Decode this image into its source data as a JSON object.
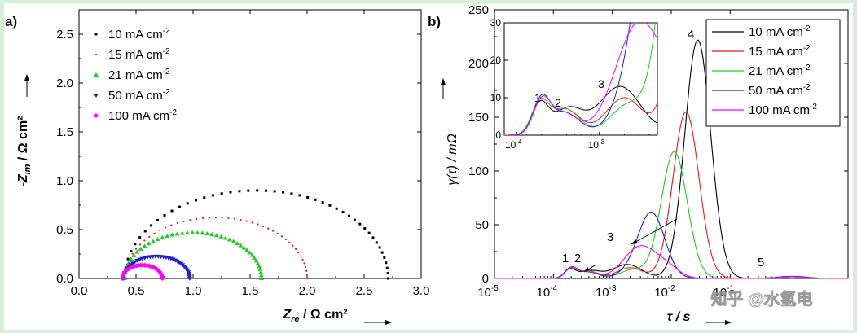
{
  "chart_data": [
    {
      "type": "scatter",
      "panel_label": "a)",
      "xlabel_main": "Z",
      "xlabel_sub": "re",
      "xlabel_unit": " / Ω cm²",
      "ylabel_main": "-Z",
      "ylabel_sub": "im",
      "ylabel_unit": " / Ω cm²",
      "xlim": [
        0.0,
        3.0
      ],
      "ylim": [
        0.0,
        2.75
      ],
      "xticks": [
        "0.0",
        "0.5",
        "1.0",
        "1.5",
        "2.0",
        "2.5",
        "3.0"
      ],
      "yticks": [
        "0.0",
        "0.5",
        "1.0",
        "1.5",
        "2.0",
        "2.5"
      ],
      "series": [
        {
          "name": "10 mA cm",
          "sup": "-2",
          "color": "#000000",
          "marker": "square",
          "r0": 0.4,
          "r1": 2.71,
          "points": 46
        },
        {
          "name": "15 mA cm",
          "sup": "-2",
          "color": "#e41a1c",
          "marker": "dot",
          "r0": 0.4,
          "r1": 2.0,
          "points": 44
        },
        {
          "name": "21 mA cm",
          "sup": "-2",
          "color": "#22cc22",
          "marker": "triangle",
          "r0": 0.4,
          "r1": 1.6,
          "points": 42
        },
        {
          "name": "50 mA cm",
          "sup": "-2",
          "color": "#1f1fd6",
          "marker": "triangle-down",
          "r0": 0.39,
          "r1": 0.97,
          "points": 38
        },
        {
          "name": "100 mA cm",
          "sup": "-2",
          "color": "#ff00ff",
          "marker": "diamond",
          "r0": 0.38,
          "r1": 0.73,
          "points": 30
        }
      ]
    },
    {
      "type": "line",
      "panel_label": "b)",
      "xscale": "log",
      "xlabel": "τ / s",
      "ylabel": "γ(τ) / mΩ",
      "xlim_exp": [
        -5,
        1
      ],
      "ylim": [
        0,
        250
      ],
      "xtick_exps": [
        "-5",
        "-4",
        "-3",
        "-2",
        "-1"
      ],
      "xtick_base": "10",
      "yticks": [
        "0",
        "50",
        "100",
        "150",
        "200",
        "250"
      ],
      "peak_labels": [
        "1",
        "2",
        "3",
        "4",
        "5"
      ],
      "inset": {
        "ylim": [
          0,
          30
        ],
        "yticks": [
          "0",
          "10",
          "20",
          "30"
        ],
        "xtick_exps": [
          "-4",
          "-3"
        ],
        "peak_labels": [
          "1",
          "2",
          "3"
        ]
      },
      "series": [
        {
          "name": "10 mA cm",
          "sup": "-2",
          "color": "#000000",
          "peaks": [
            {
              "mu": -3.72,
              "s": 0.1,
              "h": 8
            },
            {
              "mu": -3.38,
              "s": 0.18,
              "h": 7
            },
            {
              "mu": -2.75,
              "s": 0.25,
              "h": 13
            },
            {
              "mu": -1.55,
              "s": 0.22,
              "h": 222
            },
            {
              "mu": 0.05,
              "s": 0.25,
              "h": 1.5
            }
          ]
        },
        {
          "name": "15 mA cm",
          "sup": "-2",
          "color": "#e41a1c",
          "peaks": [
            {
              "mu": -3.72,
              "s": 0.1,
              "h": 8
            },
            {
              "mu": -3.42,
              "s": 0.18,
              "h": 7
            },
            {
              "mu": -2.7,
              "s": 0.22,
              "h": 10
            },
            {
              "mu": -1.75,
              "s": 0.22,
              "h": 155
            },
            {
              "mu": 0.05,
              "s": 0.25,
              "h": 1.5
            }
          ]
        },
        {
          "name": "21 mA cm",
          "sup": "-2",
          "color": "#22cc22",
          "peaks": [
            {
              "mu": -3.72,
              "s": 0.1,
              "h": 8
            },
            {
              "mu": -3.42,
              "s": 0.18,
              "h": 7
            },
            {
              "mu": -2.65,
              "s": 0.22,
              "h": 8
            },
            {
              "mu": -1.95,
              "s": 0.22,
              "h": 118
            },
            {
              "mu": 0.05,
              "s": 0.25,
              "h": 1.5
            }
          ]
        },
        {
          "name": "50 mA cm",
          "sup": "-2",
          "color": "#1f1fd6",
          "peaks": [
            {
              "mu": -3.7,
              "s": 0.1,
              "h": 9
            },
            {
              "mu": -3.42,
              "s": 0.18,
              "h": 6
            },
            {
              "mu": -2.55,
              "s": 0.25,
              "h": 10
            },
            {
              "mu": -2.32,
              "s": 0.22,
              "h": 55
            },
            {
              "mu": 0.05,
              "s": 0.25,
              "h": 2
            }
          ]
        },
        {
          "name": "100 mA cm",
          "sup": "-2",
          "color": "#ff00ff",
          "peaks": [
            {
              "mu": -3.7,
              "s": 0.1,
              "h": 8
            },
            {
              "mu": -3.45,
              "s": 0.18,
              "h": 6
            },
            {
              "mu": -2.52,
              "s": 0.28,
              "h": 30
            },
            {
              "mu": -2.05,
              "s": 0.2,
              "h": 8
            },
            {
              "mu": 0.05,
              "s": 0.25,
              "h": 1.5
            }
          ]
        }
      ]
    }
  ],
  "watermark": "知乎 @水氢电"
}
